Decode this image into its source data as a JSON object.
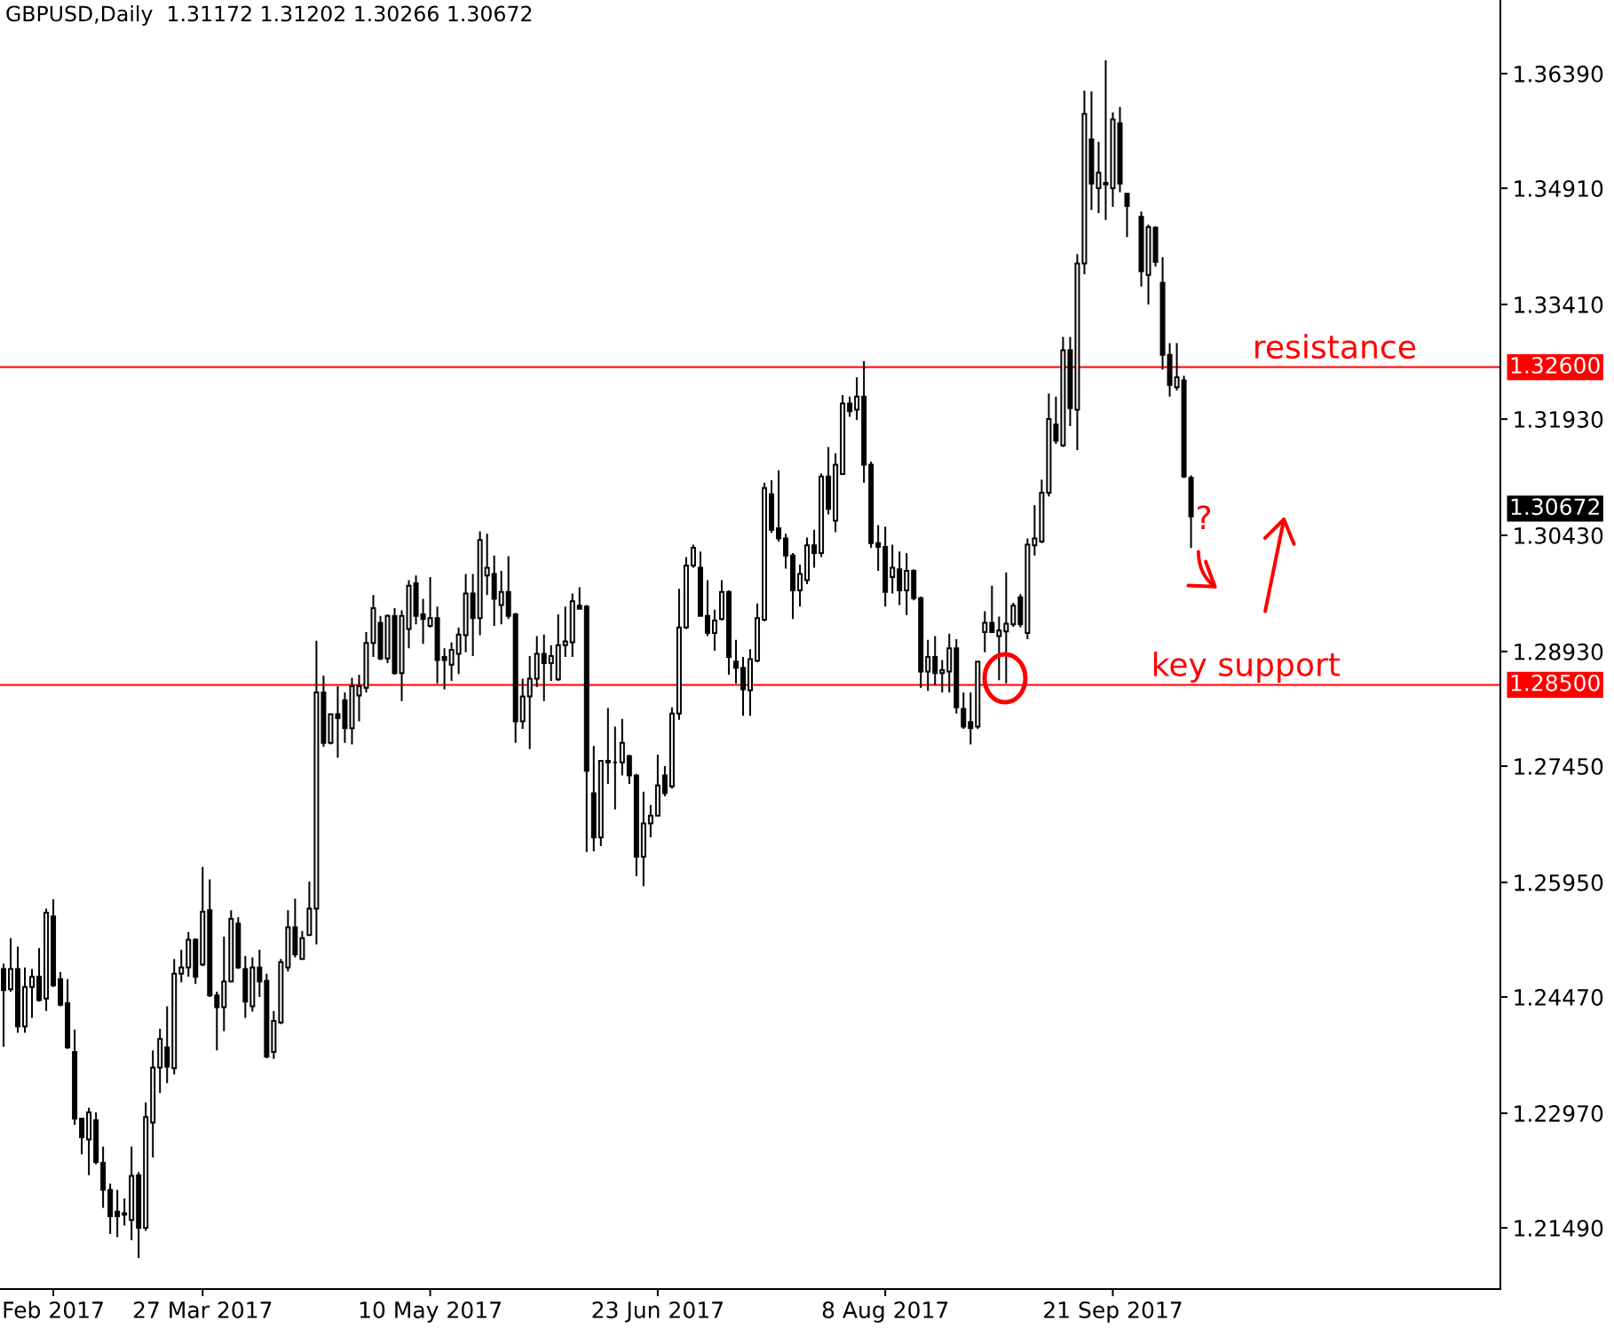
{
  "chart_data": {
    "type": "candlestick",
    "title": "GBPUSD,Daily  1.31172 1.31202 1.30266 1.30672",
    "color": "#000000",
    "categories": [
      null,
      null,
      null,
      null,
      null,
      null,
      null,
      "Feb 2017",
      null,
      null,
      null,
      null,
      null,
      null,
      null,
      null,
      null,
      null,
      null,
      null,
      null,
      null,
      null,
      null,
      null,
      null,
      null,
      null,
      "27 Mar 2017",
      null,
      null,
      null,
      null,
      null,
      null,
      null,
      null,
      null,
      null,
      null,
      null,
      null,
      null,
      null,
      null,
      null,
      null,
      null,
      null,
      null,
      null,
      null,
      null,
      null,
      null,
      null,
      null,
      null,
      null,
      null,
      "10 May 2017",
      null,
      null,
      null,
      null,
      null,
      null,
      null,
      null,
      null,
      null,
      null,
      null,
      null,
      null,
      null,
      null,
      null,
      null,
      null,
      null,
      null,
      null,
      null,
      null,
      null,
      null,
      null,
      null,
      null,
      null,
      null,
      "23 Jun 2017",
      null,
      null,
      null,
      null,
      null,
      null,
      null,
      null,
      null,
      null,
      null,
      null,
      null,
      null,
      null,
      null,
      null,
      null,
      null,
      null,
      null,
      null,
      null,
      null,
      null,
      null,
      null,
      null,
      null,
      null,
      null,
      "8 Aug 2017",
      null,
      null,
      null,
      null,
      null,
      null,
      null,
      null,
      null,
      null,
      null,
      null,
      null,
      null,
      null,
      null,
      null,
      null,
      null,
      null,
      null,
      null,
      null,
      null,
      null,
      null,
      null,
      null,
      null,
      null,
      null,
      "21 Sep 2017",
      null,
      null,
      null,
      null,
      null,
      null,
      null,
      null,
      null,
      null,
      null,
      null,
      null,
      null,
      null,
      null,
      null,
      null,
      null,
      null,
      null,
      null,
      null,
      null,
      null,
      null,
      null,
      null,
      null,
      null,
      null,
      null,
      null,
      null,
      null,
      null,
      null,
      null,
      null,
      null,
      null,
      null,
      null,
      null,
      null,
      null,
      null,
      null,
      null,
      null,
      null,
      null,
      null,
      null
    ],
    "ohlc": [
      [
        1.2483,
        1.249,
        1.2383,
        1.2456
      ],
      [
        1.2457,
        1.2523,
        1.2454,
        1.2483
      ],
      [
        1.2483,
        1.2512,
        1.2401,
        1.2409
      ],
      [
        1.2409,
        1.2485,
        1.2401,
        1.246
      ],
      [
        1.246,
        1.2483,
        1.242,
        1.2473
      ],
      [
        1.2473,
        1.251,
        1.2441,
        1.2443
      ],
      [
        1.2445,
        1.2561,
        1.2429,
        1.2556
      ],
      [
        1.2551,
        1.2573,
        1.246,
        1.2462
      ],
      [
        1.247,
        1.2479,
        1.2435,
        1.2437
      ],
      [
        1.2439,
        1.247,
        1.238,
        1.2382
      ],
      [
        1.2376,
        1.2405,
        1.2282,
        1.229
      ],
      [
        1.229,
        1.2291,
        1.2244,
        1.2266
      ],
      [
        1.2263,
        1.2304,
        1.2217,
        1.2298
      ],
      [
        1.2288,
        1.2298,
        1.2231,
        1.2234
      ],
      [
        1.2233,
        1.2254,
        1.2175,
        1.2198
      ],
      [
        1.2198,
        1.2206,
        1.2141,
        1.2164
      ],
      [
        1.217,
        1.2198,
        1.2137,
        1.2164
      ],
      [
        1.2168,
        1.2187,
        1.2152,
        1.2166
      ],
      [
        1.2159,
        1.2254,
        1.2133,
        1.2216
      ],
      [
        1.2217,
        1.2221,
        1.211,
        1.2149
      ],
      [
        1.2149,
        1.2311,
        1.2145,
        1.2292
      ],
      [
        1.2285,
        1.2378,
        1.224,
        1.2356
      ],
      [
        1.2356,
        1.2406,
        1.2323,
        1.2393
      ],
      [
        1.2382,
        1.2435,
        1.2336,
        1.2357
      ],
      [
        1.2355,
        1.2496,
        1.2347,
        1.2477
      ],
      [
        1.2477,
        1.2508,
        1.2466,
        1.2485
      ],
      [
        1.2485,
        1.2531,
        1.2473,
        1.2521
      ],
      [
        1.2521,
        1.2523,
        1.2464,
        1.2473
      ],
      [
        1.2489,
        1.2615,
        1.2487,
        1.2557
      ],
      [
        1.2559,
        1.2599,
        1.2447,
        1.2449
      ],
      [
        1.2449,
        1.2454,
        1.2378,
        1.2434
      ],
      [
        1.2434,
        1.2525,
        1.2403,
        1.2467
      ],
      [
        1.2467,
        1.2559,
        1.2466,
        1.2548
      ],
      [
        1.2542,
        1.255,
        1.2483,
        1.2485
      ],
      [
        1.2483,
        1.25,
        1.242,
        1.2441
      ],
      [
        1.2435,
        1.2498,
        1.2428,
        1.2485
      ],
      [
        1.2485,
        1.2508,
        1.2447,
        1.2467
      ],
      [
        1.2468,
        1.2477,
        1.2368,
        1.237
      ],
      [
        1.2376,
        1.2429,
        1.2367,
        1.2416
      ],
      [
        1.2414,
        1.2496,
        1.2412,
        1.2492
      ],
      [
        1.2485,
        1.2559,
        1.248,
        1.2537
      ],
      [
        1.2537,
        1.2574,
        1.2498,
        1.2502
      ],
      [
        1.2496,
        1.2532,
        1.2495,
        1.2523
      ],
      [
        1.2527,
        1.2596,
        1.2526,
        1.2561
      ],
      [
        1.2561,
        1.2907,
        1.2515,
        1.284
      ],
      [
        1.284,
        1.2862,
        1.277,
        1.2775
      ],
      [
        1.2775,
        1.2813,
        1.2773,
        1.2812
      ],
      [
        1.2812,
        1.2848,
        1.2756,
        1.2807
      ],
      [
        1.283,
        1.284,
        1.2775,
        1.2794
      ],
      [
        1.2794,
        1.2859,
        1.2773,
        1.2848
      ],
      [
        1.2836,
        1.2863,
        1.2803,
        1.2848
      ],
      [
        1.2846,
        1.2918,
        1.284,
        1.2904
      ],
      [
        1.2904,
        1.2966,
        1.2886,
        1.2949
      ],
      [
        1.293,
        1.2939,
        1.2882,
        1.2884
      ],
      [
        1.2884,
        1.2941,
        1.2878,
        1.2939
      ],
      [
        1.2939,
        1.2949,
        1.2863,
        1.2865
      ],
      [
        1.2865,
        1.2946,
        1.2829,
        1.2939
      ],
      [
        1.2922,
        1.2985,
        1.2897,
        1.2978
      ],
      [
        1.2981,
        1.2991,
        1.2928,
        1.2939
      ],
      [
        1.2941,
        1.2961,
        1.2903,
        1.2935
      ],
      [
        1.2926,
        1.2989,
        1.2924,
        1.2936
      ],
      [
        1.2936,
        1.2951,
        1.2852,
        1.2882
      ],
      [
        1.2886,
        1.2897,
        1.2844,
        1.2882
      ],
      [
        1.2876,
        1.2905,
        1.2855,
        1.2895
      ],
      [
        1.289,
        1.2924,
        1.2864,
        1.2915
      ],
      [
        1.2914,
        1.2993,
        1.2892,
        1.2968
      ],
      [
        1.2968,
        1.2993,
        1.2887,
        1.2936
      ],
      [
        1.2936,
        1.3048,
        1.2914,
        1.3037
      ],
      [
        1.2991,
        1.3045,
        1.2966,
        1.3001
      ],
      [
        1.2993,
        1.3017,
        1.2926,
        1.2961
      ],
      [
        1.2953,
        1.2997,
        1.2928,
        1.297
      ],
      [
        1.297,
        1.3016,
        1.2935,
        1.2939
      ],
      [
        1.2941,
        1.2943,
        1.2775,
        1.2803
      ],
      [
        1.2803,
        1.2858,
        1.2793,
        1.2835
      ],
      [
        1.2835,
        1.2887,
        1.2767,
        1.2858
      ],
      [
        1.2858,
        1.2913,
        1.2847,
        1.289
      ],
      [
        1.289,
        1.2915,
        1.2829,
        1.2878
      ],
      [
        1.2878,
        1.2901,
        1.2855,
        1.2887
      ],
      [
        1.2857,
        1.2941,
        1.2855,
        1.2901
      ],
      [
        1.2901,
        1.2951,
        1.2886,
        1.2906
      ],
      [
        1.2905,
        1.2968,
        1.2886,
        1.2958
      ],
      [
        1.2952,
        1.2976,
        1.2947,
        1.2948
      ],
      [
        1.2951,
        1.2953,
        1.2634,
        1.2739
      ],
      [
        1.271,
        1.2771,
        1.2635,
        1.2653
      ],
      [
        1.2653,
        1.2752,
        1.2642,
        1.2752
      ],
      [
        1.2752,
        1.282,
        1.2722,
        1.275
      ],
      [
        1.275,
        1.2796,
        1.2689,
        1.275
      ],
      [
        1.275,
        1.2806,
        1.2733,
        1.2775
      ],
      [
        1.2758,
        1.276,
        1.2722,
        1.2733
      ],
      [
        1.2733,
        1.2735,
        1.2603,
        1.2628
      ],
      [
        1.2628,
        1.2712,
        1.259,
        1.2671
      ],
      [
        1.2671,
        1.2695,
        1.2653,
        1.2681
      ],
      [
        1.2681,
        1.276,
        1.268,
        1.272
      ],
      [
        1.2733,
        1.2745,
        1.2706,
        1.271
      ],
      [
        1.2719,
        1.2821,
        1.2716,
        1.2813
      ],
      [
        1.2813,
        1.2974,
        1.2805,
        1.2924
      ],
      [
        1.2924,
        1.3015,
        1.2922,
        1.3004
      ],
      [
        1.3004,
        1.3031,
        1.3001,
        1.3027
      ],
      [
        1.3001,
        1.3022,
        1.2938,
        1.2939
      ],
      [
        1.2939,
        1.2985,
        1.2913,
        1.2917
      ],
      [
        1.2917,
        1.2947,
        1.2894,
        1.2933
      ],
      [
        1.2935,
        1.2985,
        1.2933,
        1.297
      ],
      [
        1.297,
        1.2972,
        1.2863,
        1.2886
      ],
      [
        1.288,
        1.2908,
        1.2852,
        1.2872
      ],
      [
        1.2872,
        1.2886,
        1.281,
        1.2844
      ],
      [
        1.2843,
        1.2896,
        1.281,
        1.2883
      ],
      [
        1.2881,
        1.2955,
        1.2879,
        1.2936
      ],
      [
        1.2934,
        1.3111,
        1.2932,
        1.3104
      ],
      [
        1.3096,
        1.3114,
        1.3046,
        1.305
      ],
      [
        1.3052,
        1.3127,
        1.3035,
        1.3039
      ],
      [
        1.3039,
        1.3045,
        1.3,
        1.3017
      ],
      [
        1.3017,
        1.302,
        1.2935,
        1.2972
      ],
      [
        1.2972,
        1.3005,
        1.2951,
        1.2993
      ],
      [
        1.2985,
        1.304,
        1.298,
        1.303
      ],
      [
        1.303,
        1.305,
        1.3001,
        1.302
      ],
      [
        1.302,
        1.3123,
        1.3015,
        1.3119
      ],
      [
        1.3119,
        1.3157,
        1.307,
        1.3077
      ],
      [
        1.3062,
        1.3149,
        1.3047,
        1.3134
      ],
      [
        1.3122,
        1.3224,
        1.3121,
        1.3213
      ],
      [
        1.3213,
        1.3222,
        1.3196,
        1.3203
      ],
      [
        1.3205,
        1.3247,
        1.3192,
        1.3222
      ],
      [
        1.3222,
        1.3268,
        1.3111,
        1.3134
      ],
      [
        1.3134,
        1.3138,
        1.3027,
        1.3033
      ],
      [
        1.3033,
        1.3056,
        1.2997,
        1.3028
      ],
      [
        1.3028,
        1.3054,
        1.2951,
        1.297
      ],
      [
        1.2989,
        1.3031,
        1.2968,
        1.3001
      ],
      [
        1.2999,
        1.3022,
        1.2953,
        1.2972
      ],
      [
        1.2972,
        1.302,
        1.294,
        1.2997
      ],
      [
        1.2997,
        1.2999,
        1.2959,
        1.2962
      ],
      [
        1.2962,
        1.2964,
        1.2846,
        1.2867
      ],
      [
        1.2867,
        1.2908,
        1.2842,
        1.2886
      ],
      [
        1.2886,
        1.2913,
        1.285,
        1.2865
      ],
      [
        1.2865,
        1.2882,
        1.284,
        1.2869
      ],
      [
        1.2867,
        1.2916,
        1.284,
        1.2897
      ],
      [
        1.2897,
        1.2909,
        1.2813,
        1.2821
      ],
      [
        1.2819,
        1.284,
        1.2793,
        1.2796
      ],
      [
        1.2802,
        1.284,
        1.2773,
        1.2794
      ],
      [
        1.2796,
        1.2881,
        1.2793,
        1.288
      ],
      [
        1.2918,
        1.2945,
        1.2892,
        1.293
      ],
      [
        1.293,
        1.2978,
        1.2917,
        1.2918
      ],
      [
        1.2913,
        1.2938,
        1.2856,
        1.292
      ],
      [
        1.2919,
        1.2995,
        1.2852,
        1.2929
      ],
      [
        1.2928,
        1.2956,
        1.2925,
        1.2952
      ],
      [
        1.2963,
        1.2967,
        1.2924,
        1.2928
      ],
      [
        1.2917,
        1.3039,
        1.2909,
        1.3031
      ],
      [
        1.303,
        1.3082,
        1.3017,
        1.3039
      ],
      [
        1.3035,
        1.3115,
        1.3033,
        1.3098
      ],
      [
        1.3098,
        1.3226,
        1.3093,
        1.3193
      ],
      [
        1.3186,
        1.3222,
        1.3161,
        1.3165
      ],
      [
        1.3159,
        1.3299,
        1.3157,
        1.3282
      ],
      [
        1.3282,
        1.3299,
        1.3184,
        1.3207
      ],
      [
        1.3205,
        1.3406,
        1.3153,
        1.3394
      ],
      [
        1.3394,
        1.3617,
        1.338,
        1.3587
      ],
      [
        1.3554,
        1.3616,
        1.3463,
        1.3497
      ],
      [
        1.3491,
        1.3551,
        1.3459,
        1.3511
      ],
      [
        1.3498,
        1.3656,
        1.345,
        1.3496
      ],
      [
        1.3491,
        1.3589,
        1.3467,
        1.358
      ],
      [
        1.3575,
        1.3596,
        1.3486,
        1.3497
      ],
      [
        1.3484,
        1.3484,
        1.3428,
        1.3468
      ],
      null,
      [
        1.3454,
        1.3461,
        1.3364,
        1.3384
      ],
      [
        1.3379,
        1.3444,
        1.3341,
        1.3441
      ],
      [
        1.344,
        1.3442,
        1.339,
        1.3396
      ],
      [
        1.3369,
        1.3402,
        1.3257,
        1.3276
      ],
      [
        1.3276,
        1.3291,
        1.3222,
        1.3237
      ],
      [
        1.3234,
        1.3291,
        1.323,
        1.3247
      ],
      [
        1.3243,
        1.3249,
        1.3117,
        1.3119
      ],
      [
        1.31172,
        1.31202,
        1.30266,
        1.30672
      ],
      null,
      null,
      null,
      null,
      null,
      null,
      null,
      null,
      null,
      null,
      null,
      null,
      null,
      null,
      null,
      null,
      null,
      null,
      null,
      null,
      null,
      null,
      null,
      null,
      null,
      null,
      null,
      null,
      null,
      null,
      null,
      null,
      null,
      null,
      null,
      null,
      null,
      null,
      null,
      null,
      null,
      null,
      null
    ],
    "ylim": [
      1.207,
      1.3734
    ],
    "yticks": [
      {
        "value": 1.2149,
        "label": "1.21490"
      },
      {
        "value": 1.2297,
        "label": "1.22970"
      },
      {
        "value": 1.2447,
        "label": "1.24470"
      },
      {
        "value": 1.2595,
        "label": "1.25950"
      },
      {
        "value": 1.2745,
        "label": "1.27450"
      },
      {
        "value": 1.2893,
        "label": "1.28930"
      },
      {
        "value": 1.3043,
        "label": "1.30430"
      },
      {
        "value": 1.3193,
        "label": "1.31930"
      },
      {
        "value": 1.3341,
        "label": "1.33410"
      },
      {
        "value": 1.3491,
        "label": "1.34910"
      },
      {
        "value": 1.3639,
        "label": "1.36390"
      }
    ],
    "ref_lines": [
      {
        "axis": "y",
        "value": 1.326,
        "label": "resistance",
        "color": "#ff0000"
      },
      {
        "axis": "y",
        "value": 1.285,
        "label": "key support",
        "color": "#ff0000"
      }
    ],
    "annotations": [
      "?",
      "1.32600",
      "1.28500",
      "1.30672"
    ]
  }
}
